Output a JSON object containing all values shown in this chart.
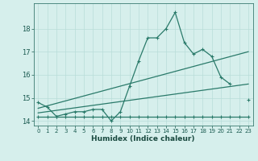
{
  "xlabel": "Humidex (Indice chaleur)",
  "x_values": [
    0,
    1,
    2,
    3,
    4,
    5,
    6,
    7,
    8,
    9,
    10,
    11,
    12,
    13,
    14,
    15,
    16,
    17,
    18,
    19,
    20,
    21,
    22,
    23
  ],
  "line1_y": [
    14.8,
    14.6,
    14.2,
    14.3,
    14.4,
    14.4,
    14.5,
    14.5,
    14.0,
    14.4,
    15.5,
    16.6,
    17.6,
    17.6,
    18.0,
    18.7,
    17.4,
    16.9,
    17.1,
    16.8,
    15.9,
    15.6,
    null,
    14.9
  ],
  "line2_y": [
    14.2,
    14.2,
    14.2,
    14.2,
    14.2,
    14.2,
    14.2,
    14.2,
    14.2,
    14.2,
    14.2,
    14.2,
    14.2,
    14.2,
    14.2,
    14.2,
    14.2,
    14.2,
    14.2,
    14.2,
    14.2,
    14.2,
    14.2,
    14.2
  ],
  "trend1_x": [
    0,
    23
  ],
  "trend1_y": [
    14.55,
    17.0
  ],
  "trend2_x": [
    0,
    23
  ],
  "trend2_y": [
    14.35,
    15.6
  ],
  "line_color": "#2a7a6a",
  "bg_color": "#d6efec",
  "grid_color": "#b8ddd9",
  "grid_minor_color": "#cce8e5",
  "ylim": [
    13.8,
    19.1
  ],
  "xlim": [
    -0.5,
    23.5
  ],
  "yticks": [
    14,
    15,
    16,
    17,
    18
  ],
  "xticks": [
    0,
    1,
    2,
    3,
    4,
    5,
    6,
    7,
    8,
    9,
    10,
    11,
    12,
    13,
    14,
    15,
    16,
    17,
    18,
    19,
    20,
    21,
    22,
    23
  ],
  "marker_size": 2.2,
  "linewidth": 0.9
}
